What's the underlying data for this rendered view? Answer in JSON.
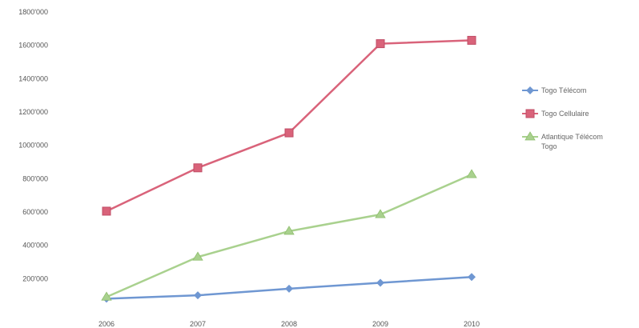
{
  "chart_data": {
    "type": "line",
    "title": "",
    "xlabel": "",
    "ylabel": "",
    "categories": [
      "2006",
      "2007",
      "2008",
      "2009",
      "2010"
    ],
    "ylim": [
      0,
      1800000
    ],
    "y_ticks": [
      {
        "value": 200000,
        "label": "200'000"
      },
      {
        "value": 400000,
        "label": "400'000"
      },
      {
        "value": 600000,
        "label": "600'000"
      },
      {
        "value": 800000,
        "label": "800'000"
      },
      {
        "value": 1000000,
        "label": "1000'000"
      },
      {
        "value": 1200000,
        "label": "1200'000"
      },
      {
        "value": 1400000,
        "label": "1400'000"
      },
      {
        "value": 1600000,
        "label": "1600'000"
      },
      {
        "value": 1800000,
        "label": "1800'000"
      }
    ],
    "grid": false,
    "legend_position": "right",
    "series": [
      {
        "name": "Togo Télécom",
        "legend_lines": [
          "Togo Télécom"
        ],
        "color": "#6f97d2",
        "marker": "diamond",
        "values": [
          80000,
          100000,
          140000,
          175000,
          210000
        ]
      },
      {
        "name": "Togo Cellulaire",
        "legend_lines": [
          "Togo Cellulaire"
        ],
        "color": "#d9637a",
        "marker": "square",
        "values": [
          605000,
          865000,
          1075000,
          1610000,
          1630000
        ]
      },
      {
        "name": "Atlantique Télécom Togo",
        "legend_lines": [
          "Atlantique Télécom",
          "Togo"
        ],
        "color": "#a9d18e",
        "marker": "triangle",
        "values": [
          90000,
          330000,
          485000,
          585000,
          825000
        ]
      }
    ]
  }
}
